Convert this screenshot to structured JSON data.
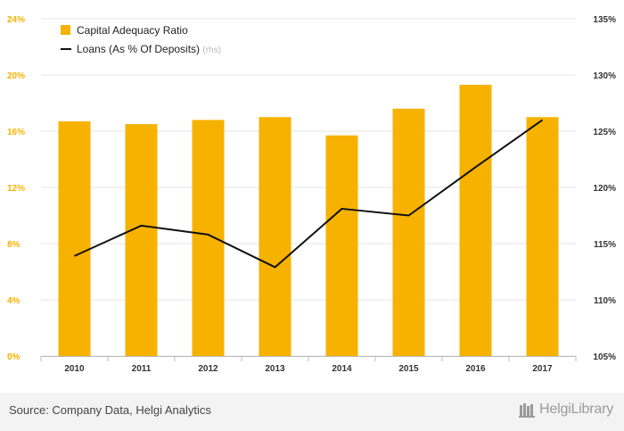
{
  "chart_data": {
    "type": "bar+line",
    "categories": [
      "2010",
      "2011",
      "2012",
      "2013",
      "2014",
      "2015",
      "2016",
      "2017"
    ],
    "series": [
      {
        "name": "Capital Adequacy Ratio",
        "type": "bar",
        "axis": "left",
        "color": "#f7b200",
        "values": [
          16.7,
          16.5,
          16.8,
          17.0,
          15.7,
          17.6,
          19.3,
          17.0
        ]
      },
      {
        "name": "Loans (As % Of Deposits)",
        "suffix": "(rhs)",
        "type": "line",
        "axis": "right",
        "color": "#111111",
        "values": [
          113.9,
          116.6,
          115.8,
          112.9,
          118.1,
          117.5,
          121.8,
          126.0
        ]
      }
    ],
    "y_left": {
      "min": 0,
      "max": 24,
      "ticks": [
        "0%",
        "4%",
        "8%",
        "12%",
        "16%",
        "20%",
        "24%"
      ]
    },
    "y_right": {
      "min": 105,
      "max": 135,
      "ticks": [
        "105%",
        "110%",
        "115%",
        "120%",
        "125%",
        "130%",
        "135%"
      ]
    },
    "grid": true,
    "legend": "top-left",
    "colors": {
      "left_axis_text": "#f7b200",
      "grid": "#e6e6e6",
      "axis_text": "#333333"
    }
  },
  "footer": {
    "source": "Source: Company Data, Helgi Analytics",
    "logo_text": "HelgiLibrary"
  }
}
